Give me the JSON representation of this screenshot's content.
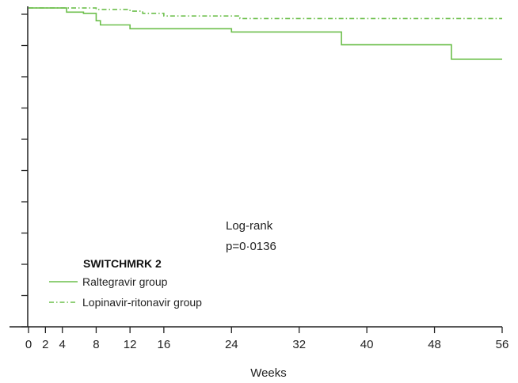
{
  "chart_data": {
    "type": "line",
    "style": "step",
    "title": "",
    "xlabel": "Weeks",
    "ylabel": "",
    "xlim": [
      0,
      56
    ],
    "ylim": [
      0,
      1
    ],
    "x_ticks": [
      0,
      2,
      4,
      8,
      12,
      16,
      24,
      32,
      40,
      48,
      56
    ],
    "x_tick_labels": [
      "0",
      "2",
      "4",
      "8",
      "12",
      "16",
      "24",
      "32",
      "40",
      "48",
      "56"
    ],
    "y_tick_count": 11,
    "grid": false,
    "series": [
      {
        "name": "Raltegravir group",
        "line_style": "solid",
        "color": "#6cbf4b",
        "x": [
          0,
          4,
          4.5,
          6.5,
          8,
          8.5,
          12,
          24,
          37,
          50,
          56
        ],
        "y": [
          0.995,
          0.995,
          0.982,
          0.978,
          0.955,
          0.942,
          0.93,
          0.92,
          0.88,
          0.835,
          0.835
        ]
      },
      {
        "name": "Lopinavir-ritonavir group",
        "line_style": "dash-dot",
        "color": "#6cbf4b",
        "x": [
          0,
          4,
          8,
          12,
          13.5,
          16,
          25,
          56
        ],
        "y": [
          0.995,
          0.995,
          0.99,
          0.985,
          0.978,
          0.97,
          0.962,
          0.962
        ]
      }
    ],
    "annotations": [
      "Log-rank",
      "p=0·0136"
    ],
    "legend": {
      "title": "SWITCHMRK 2",
      "placement": "bottom-left",
      "entries": [
        "Raltegravir group",
        "Lopinavir-ritonavir group"
      ]
    }
  }
}
